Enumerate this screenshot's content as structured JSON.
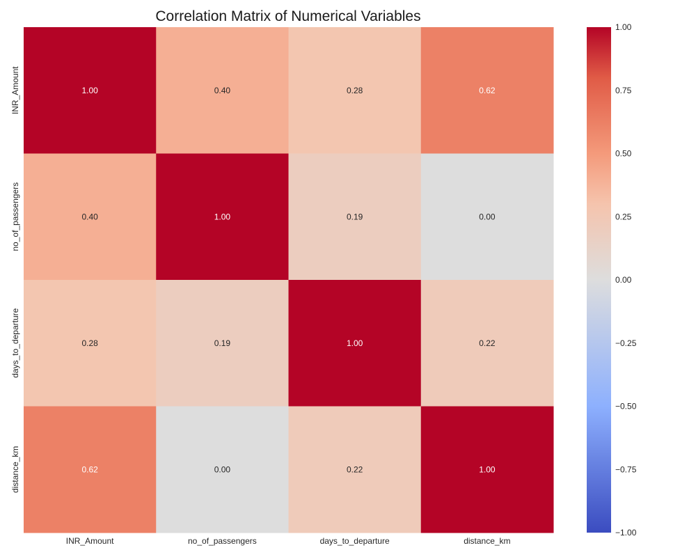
{
  "chart_data": {
    "type": "heatmap",
    "title": "Correlation Matrix of Numerical Variables",
    "rows": [
      "INR_Amount",
      "no_of_passengers",
      "days_to_departure",
      "distance_km"
    ],
    "columns": [
      "INR_Amount",
      "no_of_passengers",
      "days_to_departure",
      "distance_km"
    ],
    "values": [
      [
        1.0,
        0.4,
        0.28,
        0.62
      ],
      [
        0.4,
        1.0,
        0.19,
        0.0
      ],
      [
        0.28,
        0.19,
        1.0,
        0.22
      ],
      [
        0.62,
        0.0,
        0.22,
        1.0
      ]
    ],
    "value_labels": [
      [
        "1.00",
        "0.40",
        "0.28",
        "0.62"
      ],
      [
        "0.40",
        "1.00",
        "0.19",
        "0.00"
      ],
      [
        "0.28",
        "0.19",
        "1.00",
        "0.22"
      ],
      [
        "0.62",
        "0.00",
        "0.22",
        "1.00"
      ]
    ],
    "colormap": "coolwarm",
    "colorbar": {
      "range": [
        -1.0,
        1.0
      ],
      "ticks": [
        1.0,
        0.75,
        0.5,
        0.25,
        0.0,
        -0.25,
        -0.5,
        -0.75,
        -1.0
      ],
      "tick_labels": [
        "1.00",
        "0.75",
        "0.50",
        "0.25",
        "0.00",
        "−0.25",
        "−0.50",
        "−0.75",
        "−1.00"
      ]
    },
    "colors": {
      "low": "#3b4cc0",
      "mid": "#dddddd",
      "high": "#b40426"
    },
    "grid": false
  }
}
